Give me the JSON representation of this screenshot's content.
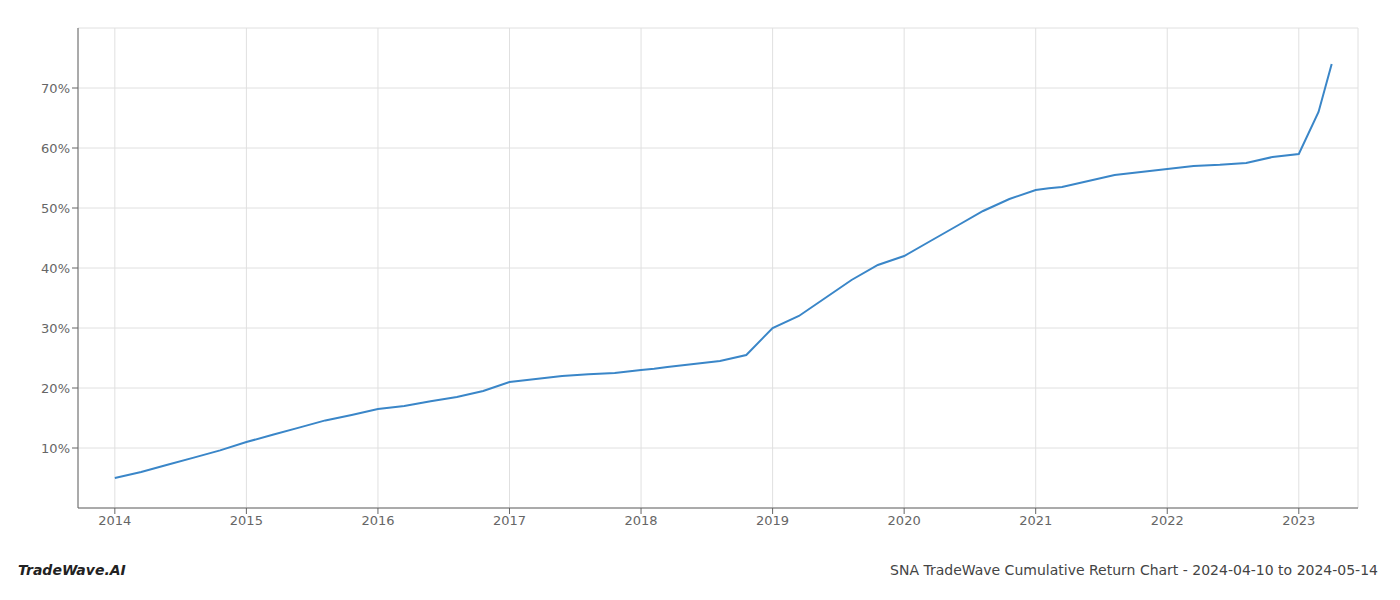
{
  "chart_data": {
    "type": "line",
    "title": "SNA TradeWave Cumulative Return Chart - 2024-04-10 to 2024-05-14",
    "annotations": [
      "TradeWave.AI"
    ],
    "x": [
      2014.0,
      2014.2,
      2014.4,
      2014.6,
      2014.8,
      2015.0,
      2015.2,
      2015.4,
      2015.6,
      2015.8,
      2016.0,
      2016.2,
      2016.4,
      2016.6,
      2016.8,
      2017.0,
      2017.2,
      2017.4,
      2017.6,
      2017.8,
      2018.0,
      2018.1,
      2018.2,
      2018.4,
      2018.6,
      2018.8,
      2019.0,
      2019.2,
      2019.4,
      2019.6,
      2019.8,
      2020.0,
      2020.2,
      2020.4,
      2020.6,
      2020.8,
      2021.0,
      2021.1,
      2021.2,
      2021.4,
      2021.6,
      2021.8,
      2022.0,
      2022.2,
      2022.4,
      2022.6,
      2022.8,
      2023.0,
      2023.15,
      2023.25
    ],
    "values": [
      5.0,
      6.0,
      7.2,
      8.4,
      9.6,
      11.0,
      12.2,
      13.4,
      14.6,
      15.5,
      16.5,
      17.0,
      17.8,
      18.5,
      19.5,
      21.0,
      21.5,
      22.0,
      22.3,
      22.5,
      23.0,
      23.2,
      23.5,
      24.0,
      24.5,
      25.5,
      30.0,
      32.0,
      35.0,
      38.0,
      40.5,
      42.0,
      44.5,
      47.0,
      49.5,
      51.5,
      53.0,
      53.3,
      53.5,
      54.5,
      55.5,
      56.0,
      56.5,
      57.0,
      57.2,
      57.5,
      58.5,
      59.0,
      66.0,
      74.0
    ],
    "color": "#3a86c8",
    "xlim": [
      2013.72,
      2023.45
    ],
    "ylim": [
      0,
      80
    ],
    "xticks": [
      2014,
      2015,
      2016,
      2017,
      2018,
      2019,
      2020,
      2021,
      2022,
      2023
    ],
    "yticks": [
      {
        "value": 10,
        "label": "10%"
      },
      {
        "value": 20,
        "label": "20%"
      },
      {
        "value": 30,
        "label": "30%"
      },
      {
        "value": 40,
        "label": "40%"
      },
      {
        "value": 50,
        "label": "50%"
      },
      {
        "value": 60,
        "label": "60%"
      },
      {
        "value": 70,
        "label": "70%"
      }
    ],
    "grid": true
  }
}
